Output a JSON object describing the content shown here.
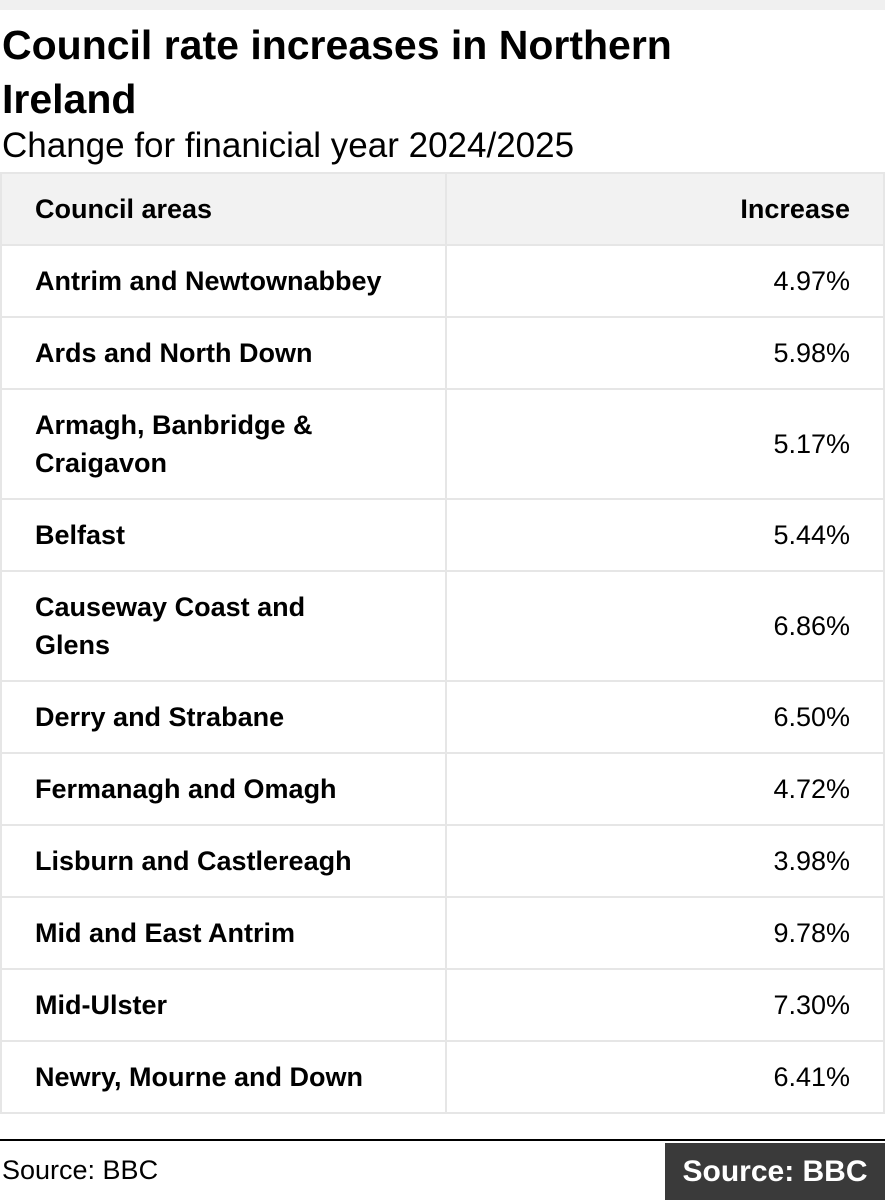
{
  "header": {
    "title": "Council rate increases in Northern Ireland",
    "subtitle": "Change for finanicial year 2024/2025"
  },
  "table": {
    "columns": [
      "Council areas",
      "Increase"
    ],
    "rows": [
      [
        "Antrim and Newtownabbey",
        "4.97%"
      ],
      [
        "Ards and North Down",
        "5.98%"
      ],
      [
        "Armagh, Banbridge & Craigavon",
        "5.17%"
      ],
      [
        "Belfast",
        "5.44%"
      ],
      [
        "Causeway Coast and Glens",
        "6.86%"
      ],
      [
        "Derry and Strabane",
        "6.50%"
      ],
      [
        "Fermanagh and Omagh",
        "4.72%"
      ],
      [
        "Lisburn and Castlereagh",
        "3.98%"
      ],
      [
        "Mid and East Antrim",
        "9.78%"
      ],
      [
        "Mid-Ulster",
        "7.30%"
      ],
      [
        "Newry, Mourne and Down",
        "6.41%"
      ]
    ]
  },
  "footer": {
    "source": "Source: BBC",
    "badge": "Source: BBC"
  }
}
